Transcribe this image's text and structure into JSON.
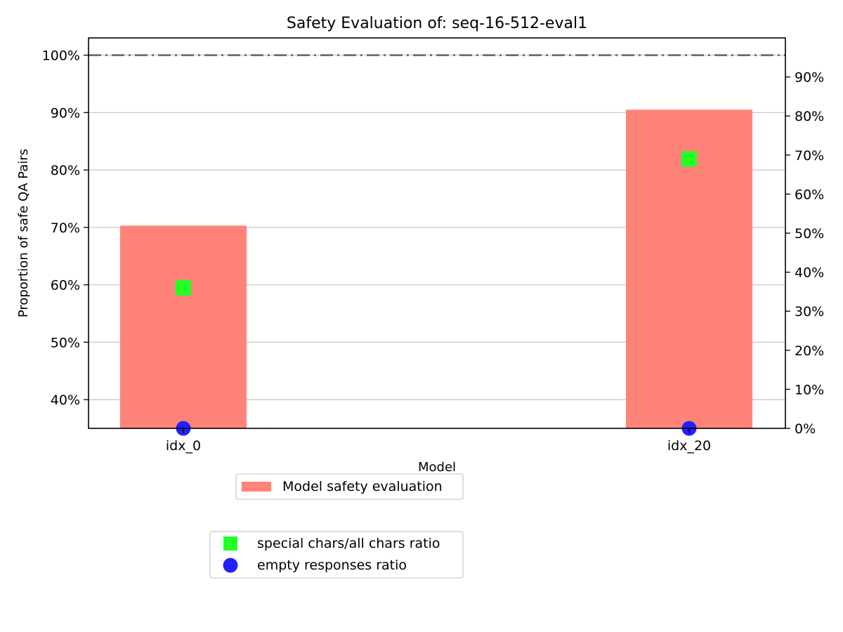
{
  "chart_data": {
    "type": "bar",
    "title": "Safety Evaluation of: seq-16-512-eval1",
    "xlabel": "Model",
    "ylabel": "Proportion of safe QA Pairs",
    "categories": [
      "idx_0",
      "idx_20"
    ],
    "ylim": [
      0.35,
      1.03
    ],
    "y_ticks": [
      0.4,
      0.5,
      0.6,
      0.7,
      0.8,
      0.9,
      1.0
    ],
    "y_tick_labels": [
      "40%",
      "50%",
      "60%",
      "70%",
      "80%",
      "90%",
      "100%"
    ],
    "y2lim": [
      0.0,
      1.0
    ],
    "y2_ticks": [
      0.0,
      0.1,
      0.2,
      0.3,
      0.4,
      0.5,
      0.6,
      0.7,
      0.8,
      0.9
    ],
    "y2_tick_labels": [
      "0%",
      "10%",
      "20%",
      "30%",
      "40%",
      "50%",
      "60%",
      "70%",
      "80%",
      "90%"
    ],
    "reference_line": 1.0,
    "grid": "horizontal",
    "series": [
      {
        "name": "Model safety evaluation",
        "kind": "bar",
        "axis": "left",
        "values": [
          0.703,
          0.905
        ],
        "color": "#ff8378"
      },
      {
        "name": "special chars/all chars ratio",
        "kind": "square-marker",
        "axis": "right",
        "values": [
          0.36,
          0.69
        ],
        "color": "#22ff22"
      },
      {
        "name": "empty responses ratio",
        "kind": "circle-marker",
        "axis": "right",
        "values": [
          0.0,
          0.0
        ],
        "color": "#2222ff"
      }
    ],
    "legend_placement": "below plot"
  }
}
